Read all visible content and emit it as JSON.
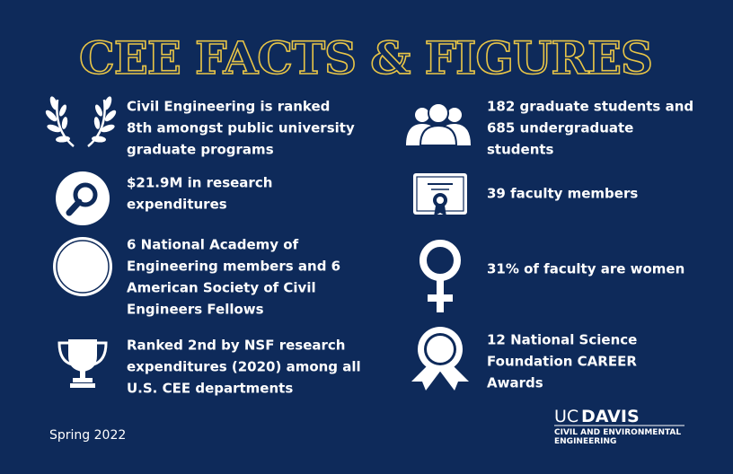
{
  "header": {
    "title": "CEE FACTS & FIGURES"
  },
  "facts": {
    "left": [
      {
        "lines": [
          "Civil Engineering is ranked",
          "8th amongst public university",
          "graduate programs"
        ]
      },
      {
        "lines": [
          "$21.9M in research",
          "expenditures"
        ]
      },
      {
        "lines": [
          "6 National Academy of",
          "Engineering members and 6",
          "American Society of Civil",
          "Engineers Fellows"
        ]
      },
      {
        "lines": [
          "Ranked 2nd by NSF research",
          "expenditures (2020) among all",
          "U.S. CEE departments"
        ]
      }
    ],
    "right": [
      {
        "lines": [
          "182 graduate students and",
          "685 undergraduate",
          "students"
        ]
      },
      {
        "lines": [
          "39 faculty members"
        ]
      },
      {
        "lines": [
          "31% of faculty are women"
        ]
      },
      {
        "lines": [
          "12 National Science",
          "Foundation CAREER",
          "Awards"
        ]
      }
    ]
  },
  "footer": {
    "date": "Spring 2022",
    "logo": {
      "uc": "UC",
      "davis": "DAVIS",
      "dept": [
        "CIVIL AND ENVIRONMENTAL",
        "ENGINEERING"
      ]
    }
  }
}
